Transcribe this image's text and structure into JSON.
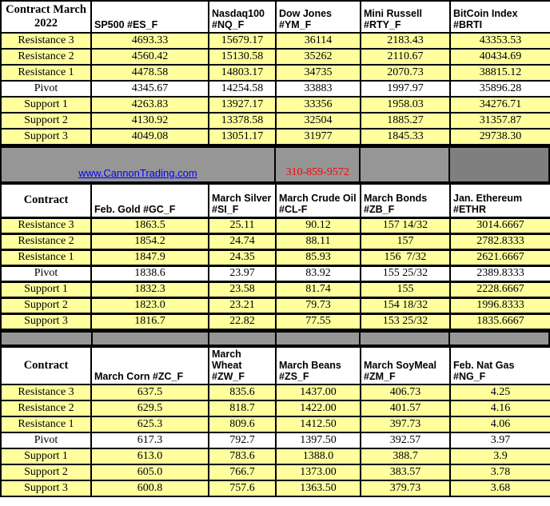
{
  "colors": {
    "row_yellow": "#FFFF9E",
    "band_gray": "#969696",
    "band_dark_gray": "#7F7F7F",
    "link_blue": "#0000FF",
    "phone_red": "#FF0000",
    "border_black": "#000000"
  },
  "band": {
    "website": "www.CannonTrading.com",
    "phone": "310-859-9572"
  },
  "tables": [
    {
      "corner": "Contract March 2022",
      "columns": [
        "SP500 #ES_F",
        "Nasdaq100\n#NQ_F",
        "Dow Jones\n#YM_F",
        "Mini Russell\n#RTY_F",
        "BitCoin Index #BRTI"
      ],
      "rows": [
        {
          "label": "Resistance 3",
          "values": [
            "4693.33",
            "15679.17",
            "36114",
            "2183.43",
            "43353.53"
          ]
        },
        {
          "label": "Resistance 2",
          "values": [
            "4560.42",
            "15130.58",
            "35262",
            "2110.67",
            "40434.69"
          ]
        },
        {
          "label": "Resistance 1",
          "values": [
            "4478.58",
            "14803.17",
            "34735",
            "2070.73",
            "38815.12"
          ]
        },
        {
          "label": "Pivot",
          "values": [
            "4345.67",
            "14254.58",
            "33883",
            "1997.97",
            "35896.28"
          ]
        },
        {
          "label": "Support 1",
          "values": [
            "4263.83",
            "13927.17",
            "33356",
            "1958.03",
            "34276.71"
          ]
        },
        {
          "label": "Support 2",
          "values": [
            "4130.92",
            "13378.58",
            "32504",
            "1885.27",
            "31357.87"
          ]
        },
        {
          "label": "Support 3",
          "values": [
            "4049.08",
            "13051.17",
            "31977",
            "1845.33",
            "29738.30"
          ]
        }
      ]
    },
    {
      "corner": "Contract",
      "columns": [
        "Feb. Gold #GC_F",
        "March Silver\n#SI_F",
        "March Crude Oil\n#CL-F",
        "March Bonds\n#ZB_F",
        "Jan.  Ethereum\n#ETHR"
      ],
      "rows": [
        {
          "label": "Resistance 3",
          "values": [
            "1863.5",
            "25.11",
            "90.12",
            "157 14/32",
            "3014.6667"
          ]
        },
        {
          "label": "Resistance 2",
          "values": [
            "1854.2",
            "24.74",
            "88.11",
            "157",
            "2782.8333"
          ]
        },
        {
          "label": "Resistance 1",
          "values": [
            "1847.9",
            "24.35",
            "85.93",
            "156  7/32",
            "2621.6667"
          ]
        },
        {
          "label": "Pivot",
          "values": [
            "1838.6",
            "23.97",
            "83.92",
            "155 25/32",
            "2389.8333"
          ]
        },
        {
          "label": "Support 1",
          "values": [
            "1832.3",
            "23.58",
            "81.74",
            "155",
            "2228.6667"
          ]
        },
        {
          "label": "Support 2",
          "values": [
            "1823.0",
            "23.21",
            "79.73",
            "154 18/32",
            "1996.8333"
          ]
        },
        {
          "label": "Support 3",
          "values": [
            "1816.7",
            "22.82",
            "77.55",
            "153 25/32",
            "1835.6667"
          ]
        }
      ]
    },
    {
      "corner": "Contract",
      "columns": [
        "March Corn #ZC_F",
        "March  Wheat\n#ZW_F",
        "March Beans\n#ZS_F",
        "March SoyMeal\n#ZM_F",
        "Feb. Nat Gas #NG_F"
      ],
      "rows": [
        {
          "label": "Resistance 3",
          "values": [
            "637.5",
            "835.6",
            "1437.00",
            "406.73",
            "4.25"
          ]
        },
        {
          "label": "Resistance 2",
          "values": [
            "629.5",
            "818.7",
            "1422.00",
            "401.57",
            "4.16"
          ]
        },
        {
          "label": "Resistance 1",
          "values": [
            "625.3",
            "809.6",
            "1412.50",
            "397.73",
            "4.06"
          ]
        },
        {
          "label": "Pivot",
          "values": [
            "617.3",
            "792.7",
            "1397.50",
            "392.57",
            "3.97"
          ]
        },
        {
          "label": "Support 1",
          "values": [
            "613.0",
            "783.6",
            "1388.0",
            "388.7",
            "3.9"
          ]
        },
        {
          "label": "Support 2",
          "values": [
            "605.0",
            "766.7",
            "1373.00",
            "383.57",
            "3.78"
          ]
        },
        {
          "label": "Support 3",
          "values": [
            "600.8",
            "757.6",
            "1363.50",
            "379.73",
            "3.68"
          ]
        }
      ]
    }
  ]
}
